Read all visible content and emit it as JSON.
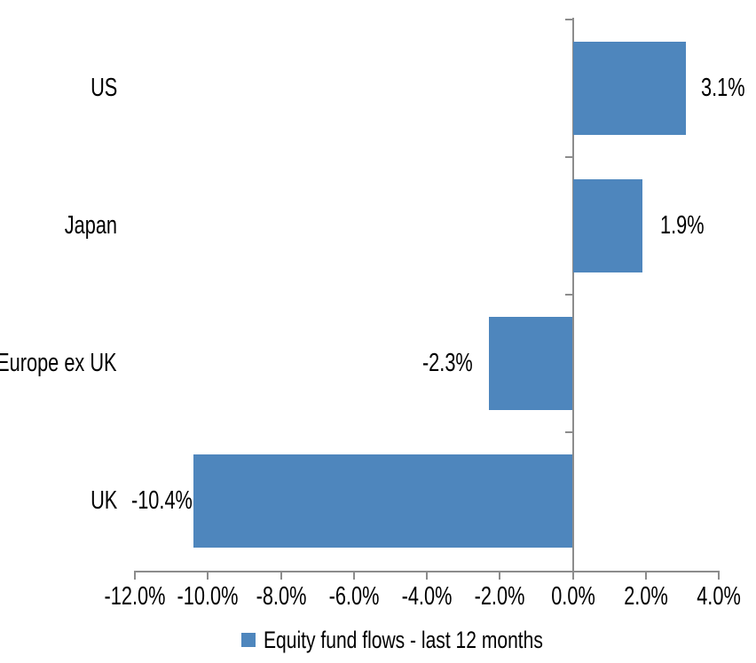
{
  "chart_data": {
    "type": "bar",
    "orientation": "horizontal",
    "title": "",
    "xlabel": "",
    "ylabel": "",
    "unit": "%",
    "categories": [
      "US",
      "Japan",
      "Europe ex UK",
      "UK"
    ],
    "series": [
      {
        "name": "Equity fund flows - last 12 months",
        "values": [
          3.1,
          1.9,
          -2.3,
          -10.4
        ],
        "data_labels": [
          "3.1%",
          "1.9%",
          "-2.3%",
          "-10.4%"
        ]
      }
    ],
    "xlim": [
      -12,
      4
    ],
    "x_ticks": [
      -12,
      -10,
      -8,
      -6,
      -4,
      -2,
      0,
      2,
      4
    ],
    "x_tick_labels": [
      "-12.0%",
      "-10.0%",
      "-8.0%",
      "-6.0%",
      "-4.0%",
      "-2.0%",
      "0.0%",
      "2.0%",
      "4.0%"
    ],
    "grid": false,
    "legend_position": "bottom",
    "legend_label": "Equity fund flows - last 12 months",
    "colors": {
      "bar": "#4E86BD",
      "axis": "#8C8C8C",
      "text": "#000000",
      "background": "#FFFFFF"
    }
  }
}
